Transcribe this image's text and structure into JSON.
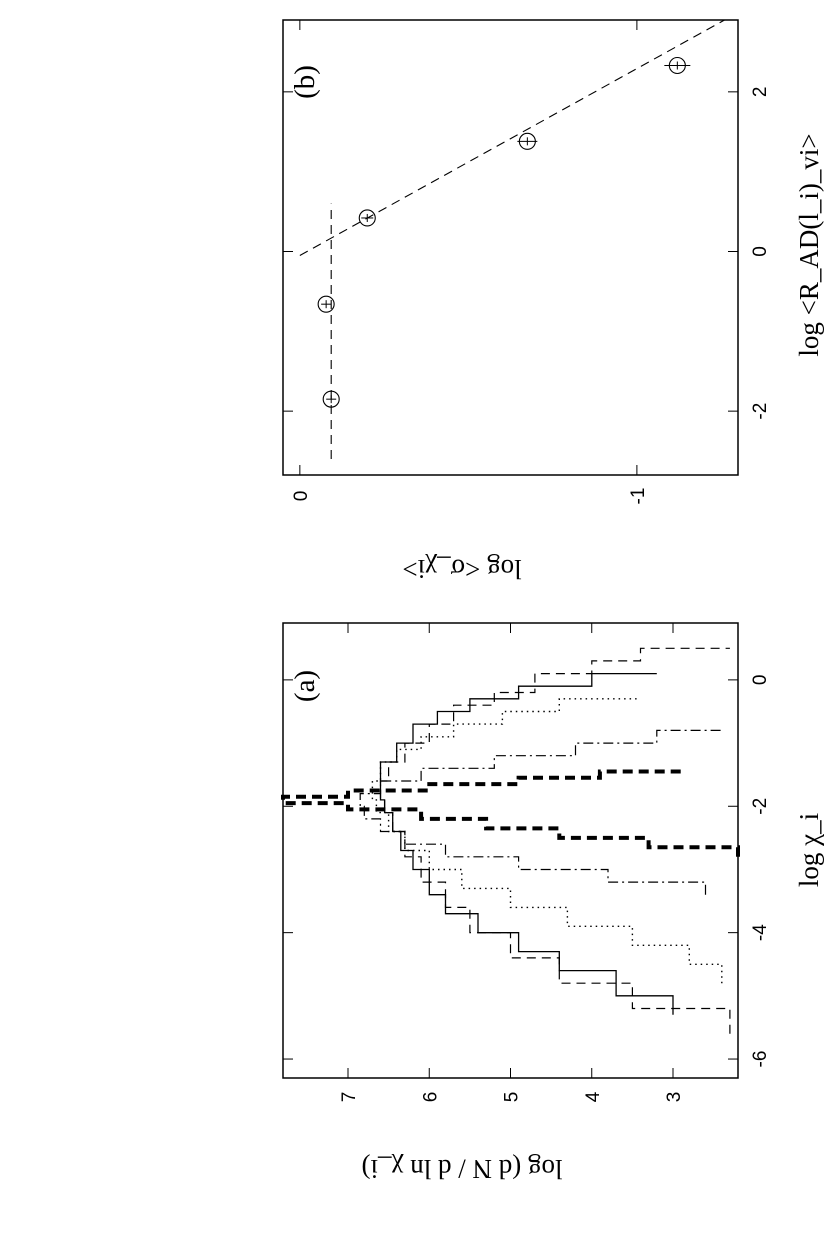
{
  "chart_data": [
    {
      "panel_label": "(a)",
      "type": "line",
      "step": true,
      "xlabel": "log χ_i",
      "ylabel": "log (d N / d ln χ_i)",
      "xlim": [
        -6.3,
        0.9
      ],
      "ylim": [
        2.2,
        7.8
      ],
      "xticks": [
        "-6",
        "-4",
        "-2",
        "0"
      ],
      "yticks": [
        "3",
        "4",
        "5",
        "6",
        "7"
      ],
      "series": [
        {
          "style": "dashed-thin",
          "color": "#000000",
          "x": [
            -5.6,
            -5.2,
            -4.8,
            -4.4,
            -4.0,
            -3.6,
            -3.2,
            -2.8,
            -2.4,
            -2.1,
            -1.9,
            -1.6,
            -1.3,
            -1.0,
            -0.7,
            -0.4,
            -0.2,
            0.1,
            0.3,
            0.5
          ],
          "y": [
            2.3,
            3.5,
            4.4,
            5.0,
            5.5,
            5.8,
            6.1,
            6.3,
            6.45,
            6.55,
            6.6,
            6.5,
            6.3,
            6.0,
            5.7,
            5.2,
            4.7,
            4.0,
            3.4,
            2.3
          ]
        },
        {
          "style": "solid",
          "color": "#000000",
          "x": [
            -5.3,
            -5.0,
            -4.6,
            -4.3,
            -4.0,
            -3.7,
            -3.4,
            -3.0,
            -2.7,
            -2.4,
            -2.1,
            -1.9,
            -1.6,
            -1.3,
            -1.0,
            -0.7,
            -0.5,
            -0.3,
            -0.1,
            0.1
          ],
          "y": [
            3.0,
            3.7,
            4.4,
            4.9,
            5.4,
            5.8,
            6.0,
            6.2,
            6.35,
            6.45,
            6.55,
            6.6,
            6.6,
            6.4,
            6.2,
            5.9,
            5.5,
            4.9,
            4.0,
            3.2
          ]
        },
        {
          "style": "dotted",
          "color": "#000000",
          "x": [
            -4.8,
            -4.5,
            -4.2,
            -3.9,
            -3.6,
            -3.3,
            -3.0,
            -2.7,
            -2.4,
            -2.1,
            -1.9,
            -1.6,
            -1.3,
            -1.1,
            -0.9,
            -0.7,
            -0.5,
            -0.3
          ],
          "y": [
            2.4,
            2.8,
            3.5,
            4.3,
            5.0,
            5.6,
            6.0,
            6.3,
            6.5,
            6.65,
            6.7,
            6.6,
            6.4,
            6.1,
            5.7,
            5.1,
            4.4,
            3.4
          ]
        },
        {
          "style": "dash-dot",
          "color": "#000000",
          "x": [
            -3.4,
            -3.2,
            -3.0,
            -2.8,
            -2.6,
            -2.4,
            -2.2,
            -2.0,
            -1.8,
            -1.6,
            -1.4,
            -1.2,
            -1.0,
            -0.8
          ],
          "y": [
            2.6,
            3.8,
            4.9,
            5.8,
            6.3,
            6.6,
            6.8,
            6.85,
            6.6,
            6.1,
            5.2,
            4.2,
            3.2,
            2.4
          ]
        },
        {
          "style": "dashed-thick",
          "color": "#000000",
          "x": [
            -2.8,
            -2.65,
            -2.5,
            -2.35,
            -2.2,
            -2.05,
            -1.95,
            -1.85,
            -1.75,
            -1.65,
            -1.55,
            -1.45
          ],
          "y": [
            2.2,
            3.3,
            4.4,
            5.3,
            6.1,
            7.0,
            7.8,
            7.0,
            6.0,
            4.9,
            3.9,
            2.9
          ]
        }
      ]
    },
    {
      "panel_label": "(b)",
      "type": "scatter",
      "xlabel": "log <R_AD(l_i)_vi>",
      "ylabel": "log <σ_χi>",
      "xlim": [
        -2.8,
        2.9
      ],
      "ylim": [
        -1.3,
        0.05
      ],
      "xticks": [
        "-2",
        "0",
        "2"
      ],
      "yticks": [
        "0",
        "-1"
      ],
      "points": [
        {
          "x": -1.85,
          "y": -0.093
        },
        {
          "x": -0.66,
          "y": -0.078
        },
        {
          "x": 0.42,
          "y": -0.2
        },
        {
          "x": 1.38,
          "y": -0.675
        },
        {
          "x": 2.33,
          "y": -1.12
        }
      ],
      "fit_lines": [
        {
          "style": "dashed",
          "x": [
            -2.6,
            0.6
          ],
          "y": [
            -0.093,
            -0.093
          ]
        },
        {
          "style": "dashed",
          "x": [
            -0.05,
            2.9
          ],
          "y": [
            0.0,
            -1.26
          ]
        }
      ]
    }
  ]
}
